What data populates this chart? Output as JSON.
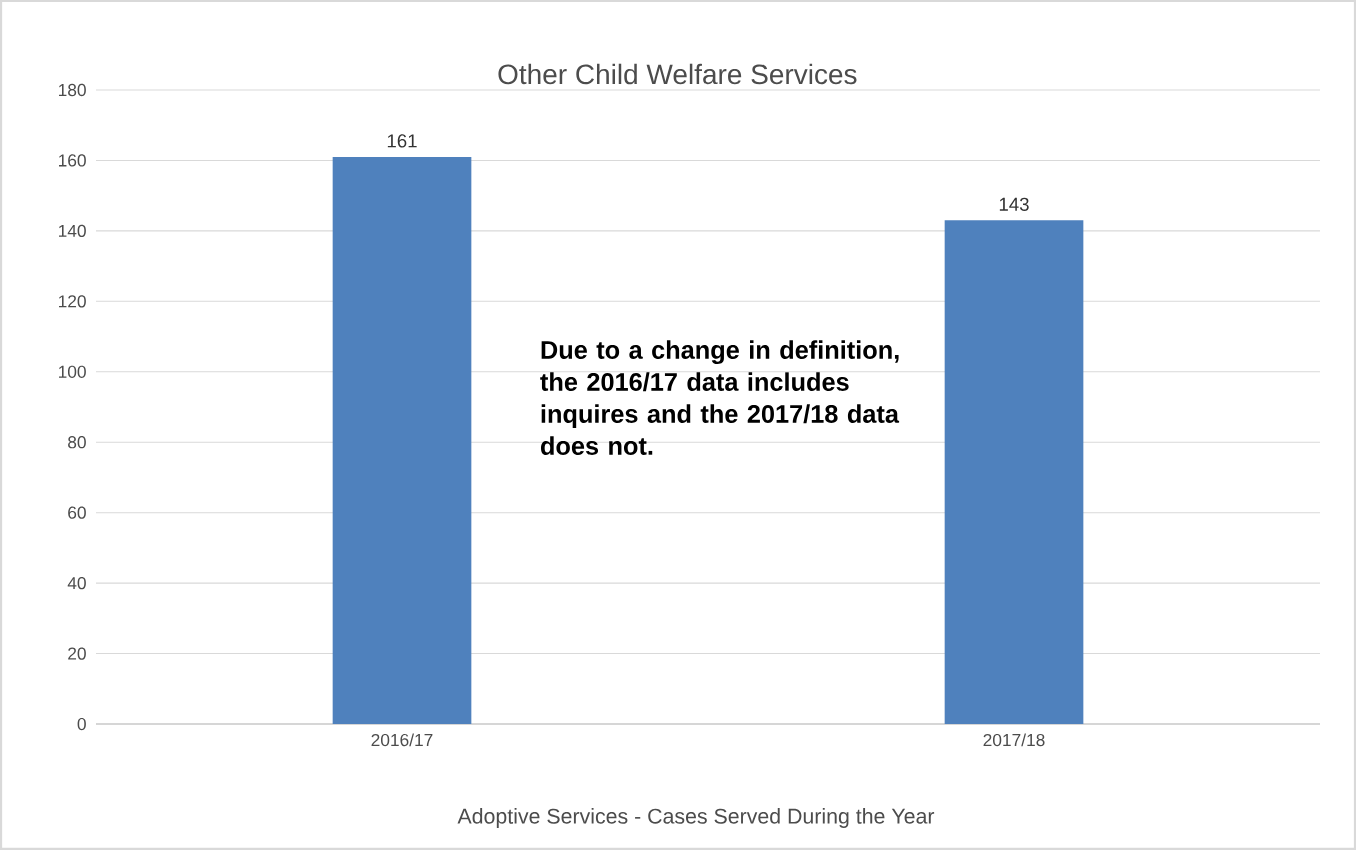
{
  "chart_data": {
    "type": "bar",
    "title": "Other Child Welfare Services",
    "xlabel": "Adoptive Services - Cases Served During the Year",
    "categories": [
      "2016/17",
      "2017/18"
    ],
    "values": [
      161,
      143
    ],
    "color": "#4f81bd",
    "ylim": [
      0,
      180
    ],
    "yticks": [
      0,
      20,
      40,
      60,
      80,
      100,
      120,
      140,
      160,
      180
    ],
    "grid": "y",
    "data_labels": true,
    "annotations": [
      "Due to a change in definition, the 2016/17 data includes inquires and the 2017/18 data does not."
    ]
  }
}
